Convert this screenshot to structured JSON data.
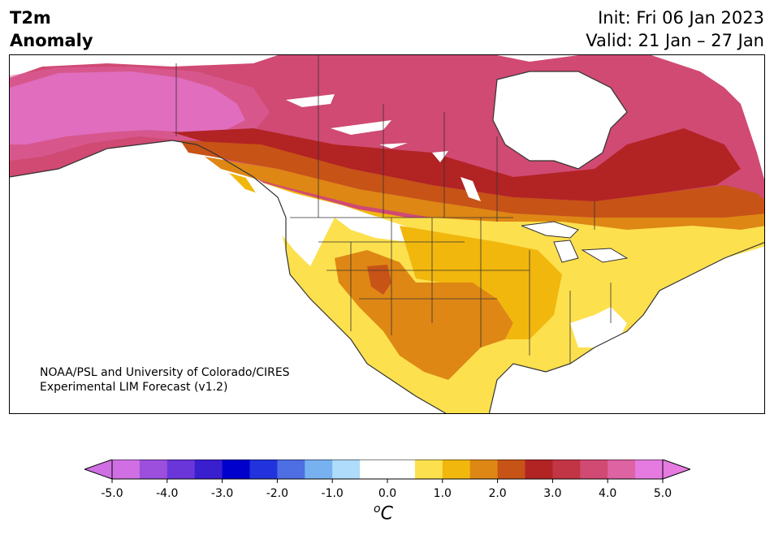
{
  "header": {
    "title_line1": "T2m",
    "title_line2": "Anomaly",
    "init": "Init: Fri 06 Jan 2023",
    "valid": "Valid: 21 Jan – 27 Jan"
  },
  "credit": {
    "line1": "NOAA/PSL and University of Colorado/CIRES",
    "line2": "Experimental LIM Forecast (v1.2)"
  },
  "colorbar": {
    "unit_sup": "o",
    "unit": "C",
    "tick_labels": [
      "-5.0",
      "-4.0",
      "-3.0",
      "-2.0",
      "-1.0",
      "0.0",
      "1.0",
      "2.0",
      "3.0",
      "4.0",
      "5.0"
    ],
    "colors": [
      "#cf6fe3",
      "#9b4fdc",
      "#6a36da",
      "#3a1fcf",
      "#0000cc",
      "#2233dd",
      "#4d6fe3",
      "#77b1f0",
      "#aedcfa",
      "#ffffff",
      "#ffffff",
      "#fde04e",
      "#f1b70d",
      "#de8715",
      "#c75317",
      "#b22324",
      "#c23545",
      "#d04a73",
      "#dd63a3",
      "#e57be0"
    ],
    "under_color": "#cf6fe3",
    "over_color": "#e57be0"
  },
  "map": {
    "region": "North America",
    "field": "2m temperature anomaly",
    "colors": {
      "land_zero": "#ffffff",
      "anom_1": "#fde04e",
      "anom_1_5": "#f1b70d",
      "anom_2": "#de8715",
      "anom_2_5": "#c75317",
      "anom_3": "#b22324",
      "anom_3_5": "#c23545",
      "anom_4": "#d04a73",
      "anom_4_5": "#dd63a3",
      "anom_5": "#e57be0",
      "coast": "#333333"
    }
  }
}
